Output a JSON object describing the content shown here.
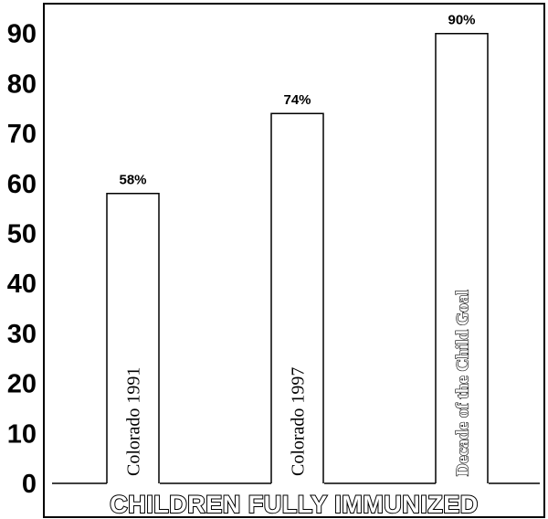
{
  "chart_data": {
    "type": "bar",
    "categories": [
      "Colorado 1991",
      "Colorado 1997",
      "Decade of the Child Goal"
    ],
    "values": [
      58,
      74,
      90
    ],
    "data_labels": [
      "58%",
      "74%",
      "90%"
    ],
    "xlabel": "CHILDREN FULLY IMMUNIZED",
    "ylabel": "",
    "yticks": [
      0,
      10,
      20,
      30,
      40,
      50,
      60,
      70,
      80,
      90
    ],
    "ylim": [
      0,
      96
    ],
    "grid": false,
    "legend": "none",
    "category_label_styles": [
      "plain",
      "plain",
      "outlined"
    ],
    "colors": {
      "bar_fill": "#ffffff",
      "bar_stroke": "#000000",
      "background": "#ffffff"
    }
  }
}
